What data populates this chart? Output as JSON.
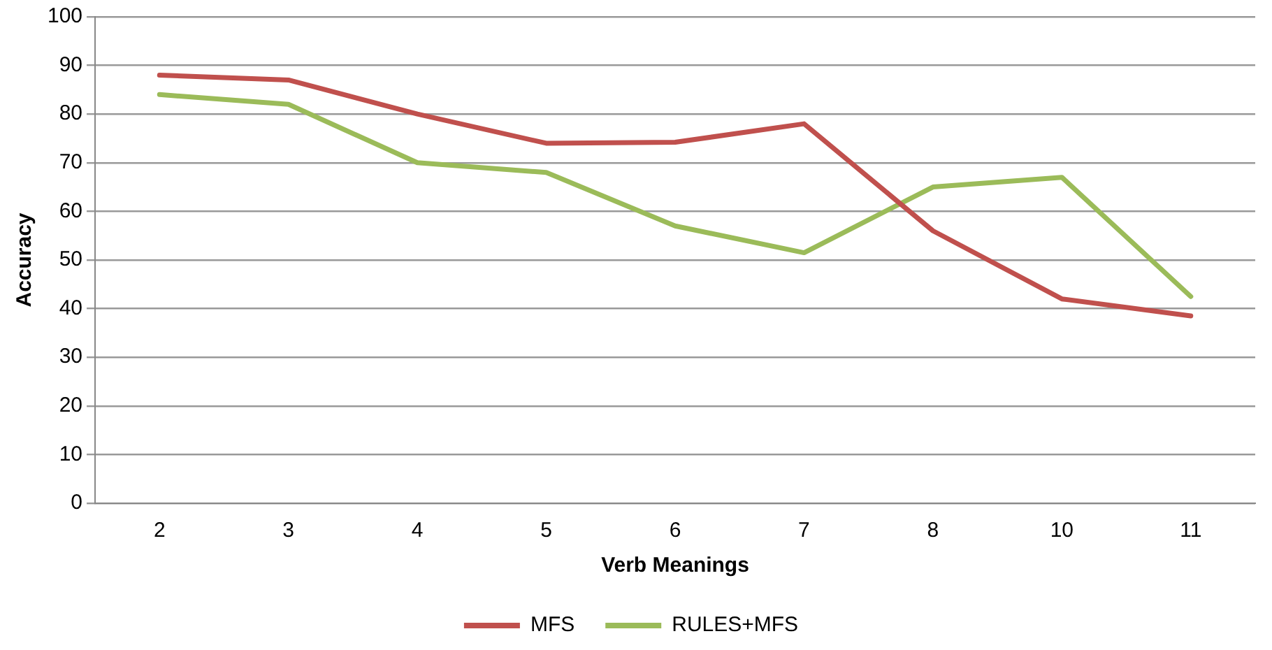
{
  "chart_data": {
    "type": "line",
    "xlabel": "Verb Meanings",
    "ylabel": "Accuracy",
    "categories": [
      "2",
      "3",
      "4",
      "5",
      "6",
      "7",
      "8",
      "10",
      "11"
    ],
    "series": [
      {
        "name": "MFS",
        "color": "#c0504d",
        "values": [
          88,
          87,
          80,
          74,
          74.2,
          78,
          56,
          42,
          38.5
        ]
      },
      {
        "name": "RULES+MFS",
        "color": "#9bbb59",
        "values": [
          84,
          82,
          70,
          68,
          57,
          51.5,
          65,
          67,
          42.5
        ]
      }
    ],
    "ylim": [
      0,
      100
    ],
    "yticks": [
      0,
      10,
      20,
      30,
      40,
      50,
      60,
      70,
      80,
      90,
      100
    ],
    "grid": "y",
    "legend": "bottom",
    "marker": "none",
    "line_style": "solid"
  }
}
